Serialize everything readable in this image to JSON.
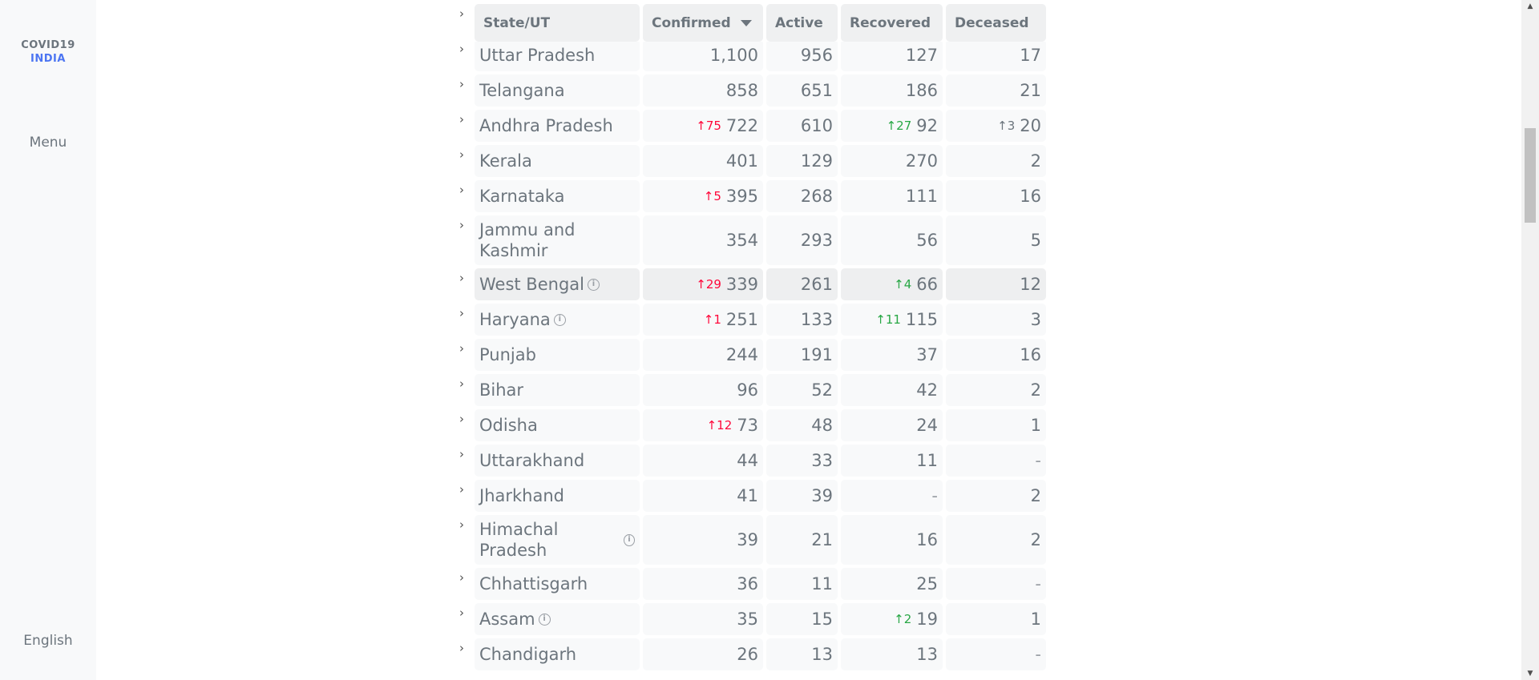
{
  "sidebar": {
    "logo_line1": "COVID19",
    "logo_line2": "INDIA",
    "menu_label": "Menu",
    "language_label": "English"
  },
  "colors": {
    "delta_confirmed": "#ff073a",
    "delta_recovered": "#28a745",
    "delta_deceased": "#6c757d",
    "logo_accent": "#4c75f2"
  },
  "table": {
    "headers": {
      "state": "State/UT",
      "confirmed": "Confirmed",
      "active": "Active",
      "recovered": "Recovered",
      "deceased": "Deceased"
    },
    "rows": [
      {
        "state": "Uttar Pradesh",
        "info": false,
        "confirmed": "1,100",
        "active": "956",
        "recovered": "127",
        "deceased": "17",
        "d_conf": "",
        "d_rec": "",
        "d_dec": ""
      },
      {
        "state": "Telangana",
        "info": false,
        "confirmed": "858",
        "active": "651",
        "recovered": "186",
        "deceased": "21",
        "d_conf": "",
        "d_rec": "",
        "d_dec": ""
      },
      {
        "state": "Andhra Pradesh",
        "info": false,
        "confirmed": "722",
        "active": "610",
        "recovered": "92",
        "deceased": "20",
        "d_conf": "↑75",
        "d_rec": "↑27",
        "d_dec": "↑3"
      },
      {
        "state": "Kerala",
        "info": false,
        "confirmed": "401",
        "active": "129",
        "recovered": "270",
        "deceased": "2",
        "d_conf": "",
        "d_rec": "",
        "d_dec": ""
      },
      {
        "state": "Karnataka",
        "info": false,
        "confirmed": "395",
        "active": "268",
        "recovered": "111",
        "deceased": "16",
        "d_conf": "↑5",
        "d_rec": "",
        "d_dec": ""
      },
      {
        "state": "Jammu and Kashmir",
        "info": false,
        "confirmed": "354",
        "active": "293",
        "recovered": "56",
        "deceased": "5",
        "d_conf": "",
        "d_rec": "",
        "d_dec": ""
      },
      {
        "state": "West Bengal",
        "info": true,
        "confirmed": "339",
        "active": "261",
        "recovered": "66",
        "deceased": "12",
        "d_conf": "↑29",
        "d_rec": "↑4",
        "d_dec": ""
      },
      {
        "state": "Haryana",
        "info": true,
        "confirmed": "251",
        "active": "133",
        "recovered": "115",
        "deceased": "3",
        "d_conf": "↑1",
        "d_rec": "↑11",
        "d_dec": ""
      },
      {
        "state": "Punjab",
        "info": false,
        "confirmed": "244",
        "active": "191",
        "recovered": "37",
        "deceased": "16",
        "d_conf": "",
        "d_rec": "",
        "d_dec": ""
      },
      {
        "state": "Bihar",
        "info": false,
        "confirmed": "96",
        "active": "52",
        "recovered": "42",
        "deceased": "2",
        "d_conf": "",
        "d_rec": "",
        "d_dec": ""
      },
      {
        "state": "Odisha",
        "info": false,
        "confirmed": "73",
        "active": "48",
        "recovered": "24",
        "deceased": "1",
        "d_conf": "↑12",
        "d_rec": "",
        "d_dec": ""
      },
      {
        "state": "Uttarakhand",
        "info": false,
        "confirmed": "44",
        "active": "33",
        "recovered": "11",
        "deceased": "-",
        "d_conf": "",
        "d_rec": "",
        "d_dec": ""
      },
      {
        "state": "Jharkhand",
        "info": false,
        "confirmed": "41",
        "active": "39",
        "recovered": "-",
        "deceased": "2",
        "d_conf": "",
        "d_rec": "",
        "d_dec": ""
      },
      {
        "state": "Himachal Pradesh",
        "info": true,
        "confirmed": "39",
        "active": "21",
        "recovered": "16",
        "deceased": "2",
        "d_conf": "",
        "d_rec": "",
        "d_dec": ""
      },
      {
        "state": "Chhattisgarh",
        "info": false,
        "confirmed": "36",
        "active": "11",
        "recovered": "25",
        "deceased": "-",
        "d_conf": "",
        "d_rec": "",
        "d_dec": ""
      },
      {
        "state": "Assam",
        "info": true,
        "confirmed": "35",
        "active": "15",
        "recovered": "19",
        "deceased": "1",
        "d_conf": "",
        "d_rec": "↑2",
        "d_dec": ""
      },
      {
        "state": "Chandigarh",
        "info": false,
        "confirmed": "26",
        "active": "13",
        "recovered": "13",
        "deceased": "-",
        "d_conf": "",
        "d_rec": "",
        "d_dec": ""
      }
    ],
    "highlighted_state": "West Bengal"
  }
}
